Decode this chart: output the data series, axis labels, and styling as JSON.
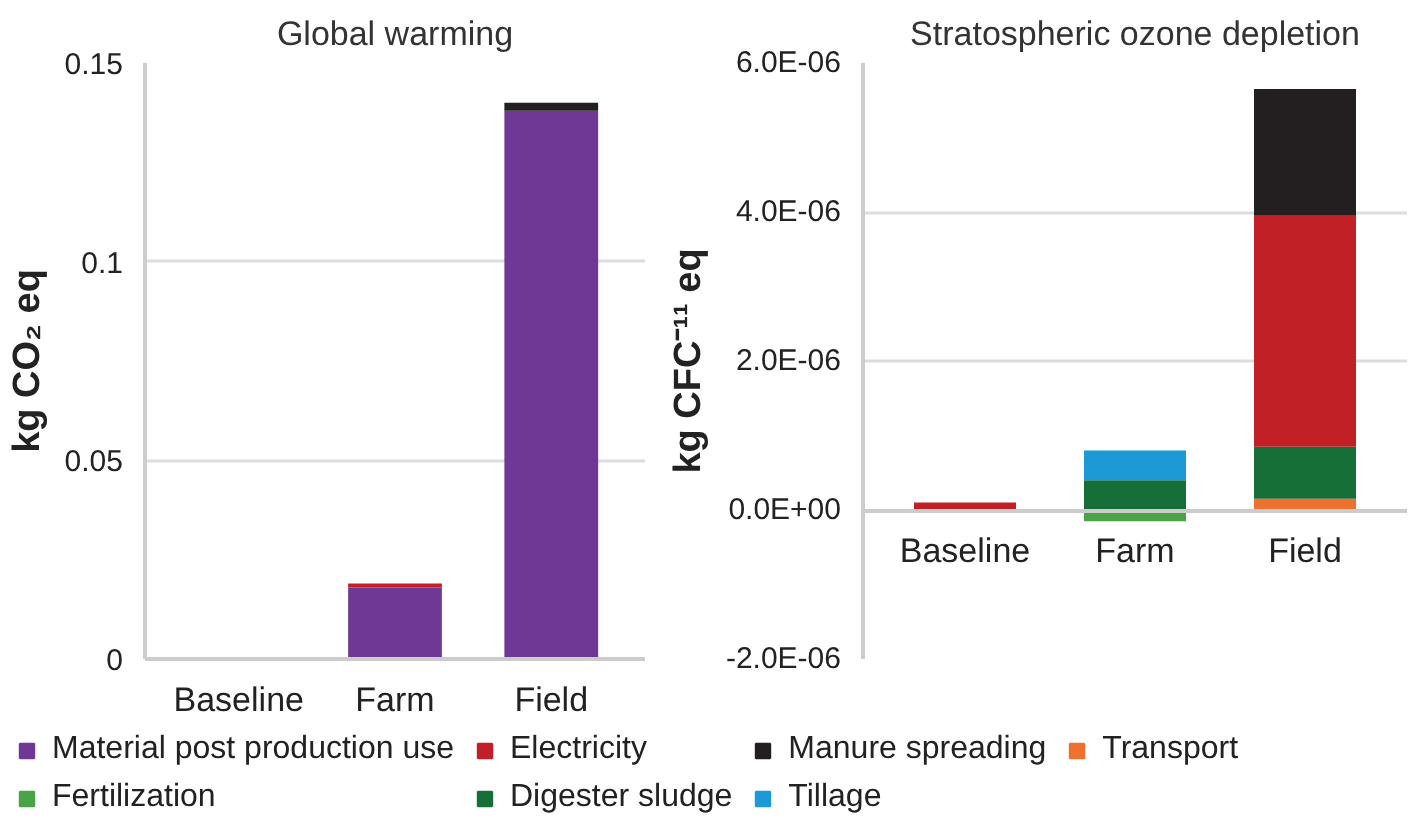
{
  "chart_data": [
    {
      "type": "bar",
      "stacked": true,
      "title": "Global warming",
      "ylabel": "kg CO₂ eq",
      "categories": [
        "Baseline",
        "Farm",
        "Field"
      ],
      "ylim": [
        0,
        0.15
      ],
      "yticks": [
        0,
        0.05,
        0.1,
        0.15
      ],
      "grid": "y",
      "legend": "bottom",
      "series": [
        {
          "name": "Material post production use",
          "color": "#6f3895",
          "values": [
            0,
            0.018,
            0.138
          ]
        },
        {
          "name": "Electricity",
          "color": "#c12027",
          "values": [
            0,
            0.001,
            0
          ]
        },
        {
          "name": "Manure spreading",
          "color": "#231f20",
          "values": [
            0,
            0,
            0.002
          ]
        }
      ]
    },
    {
      "type": "bar",
      "stacked": true,
      "title": "Stratospheric ozone depletion",
      "ylabel": "kg CFC⁻¹¹ eq",
      "categories": [
        "Baseline",
        "Farm",
        "Field"
      ],
      "ylim": [
        -2e-06,
        6e-06
      ],
      "yticks": [
        {
          "value": -2e-06,
          "label": "-2.0E-06"
        },
        {
          "value": 0,
          "label": "0.0E+00"
        },
        {
          "value": 2e-06,
          "label": "2.0E-06"
        },
        {
          "value": 4e-06,
          "label": "4.0E-06"
        },
        {
          "value": 6e-06,
          "label": "6.0E-06"
        }
      ],
      "grid": "y",
      "legend": "bottom",
      "series": [
        {
          "name": "Transport",
          "color": "#ee7130",
          "values": [
            0,
            0,
            1.5e-07
          ]
        },
        {
          "name": "Fertilization",
          "color": "#4aa447",
          "values": [
            0,
            -1.5e-07,
            0
          ]
        },
        {
          "name": "Digester sludge",
          "color": "#176f38",
          "values": [
            0,
            4e-07,
            7e-07
          ]
        },
        {
          "name": "Electricity",
          "color": "#c12027",
          "values": [
            1e-07,
            0,
            3.1e-06
          ]
        },
        {
          "name": "Tillage",
          "color": "#1b9ad6",
          "values": [
            0,
            4e-07,
            0
          ]
        },
        {
          "name": "Manure spreading",
          "color": "#231f20",
          "values": [
            0,
            0,
            1.7e-06
          ]
        },
        {
          "name": "Material post production use",
          "color": "#6f3895",
          "values": [
            0,
            0,
            0
          ]
        }
      ]
    }
  ]
}
